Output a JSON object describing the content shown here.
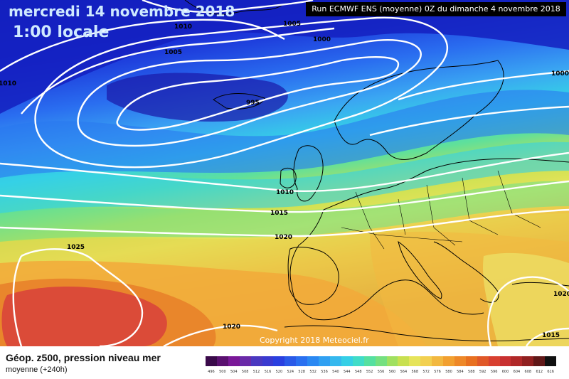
{
  "map": {
    "title_date": "mercredi 14 novembre 2018",
    "title_time": "1:00 locale",
    "run_info": "Run ECMWF ENS (moyenne) 0Z du dimanche 4 novembre 2018",
    "copyright": "Copyright 2018 Meteociel.fr",
    "isobar_labels": [
      "1010",
      "1005",
      "1005",
      "1000",
      "995",
      "1000",
      "1010",
      "1010",
      "1015",
      "1020",
      "1025",
      "1020",
      "1020",
      "1015"
    ],
    "colors": {
      "deep_blue": "#1a2fd6",
      "blue": "#2a6ef0",
      "light_blue": "#3aa6f2",
      "cyan": "#35d1e6",
      "green": "#5fe09b",
      "yellow": "#e6e45a",
      "orange": "#f2a93a",
      "dark_orange": "#e8822a",
      "red": "#d9453a",
      "land_outline": "#000000",
      "isobar": "#ffffff"
    }
  },
  "legend": {
    "title": "Géop. z500, pression niveau mer",
    "subtitle": "moyenne  (+240h)",
    "scale_values": [
      "496",
      "500",
      "504",
      "508",
      "512",
      "516",
      "520",
      "524",
      "528",
      "532",
      "536",
      "540",
      "544",
      "548",
      "552",
      "556",
      "560",
      "564",
      "568",
      "572",
      "576",
      "580",
      "584",
      "588",
      "592",
      "596",
      "600",
      "604",
      "608",
      "612",
      "616"
    ],
    "scale_colors": [
      "#3a0a4a",
      "#5a1070",
      "#7a1898",
      "#6a2aa8",
      "#4a38c0",
      "#3a3ad0",
      "#2a40e0",
      "#2a5ae8",
      "#2a70f0",
      "#2a88f2",
      "#30a0f2",
      "#35b8ee",
      "#35cfe6",
      "#40dcc8",
      "#55e0a0",
      "#75e080",
      "#a0e060",
      "#c8e050",
      "#e6e45a",
      "#f2d050",
      "#f2b840",
      "#f2a030",
      "#ee8828",
      "#e87020",
      "#e05828",
      "#d84030",
      "#c83030",
      "#b02828",
      "#902020",
      "#601818",
      "#101010"
    ]
  }
}
